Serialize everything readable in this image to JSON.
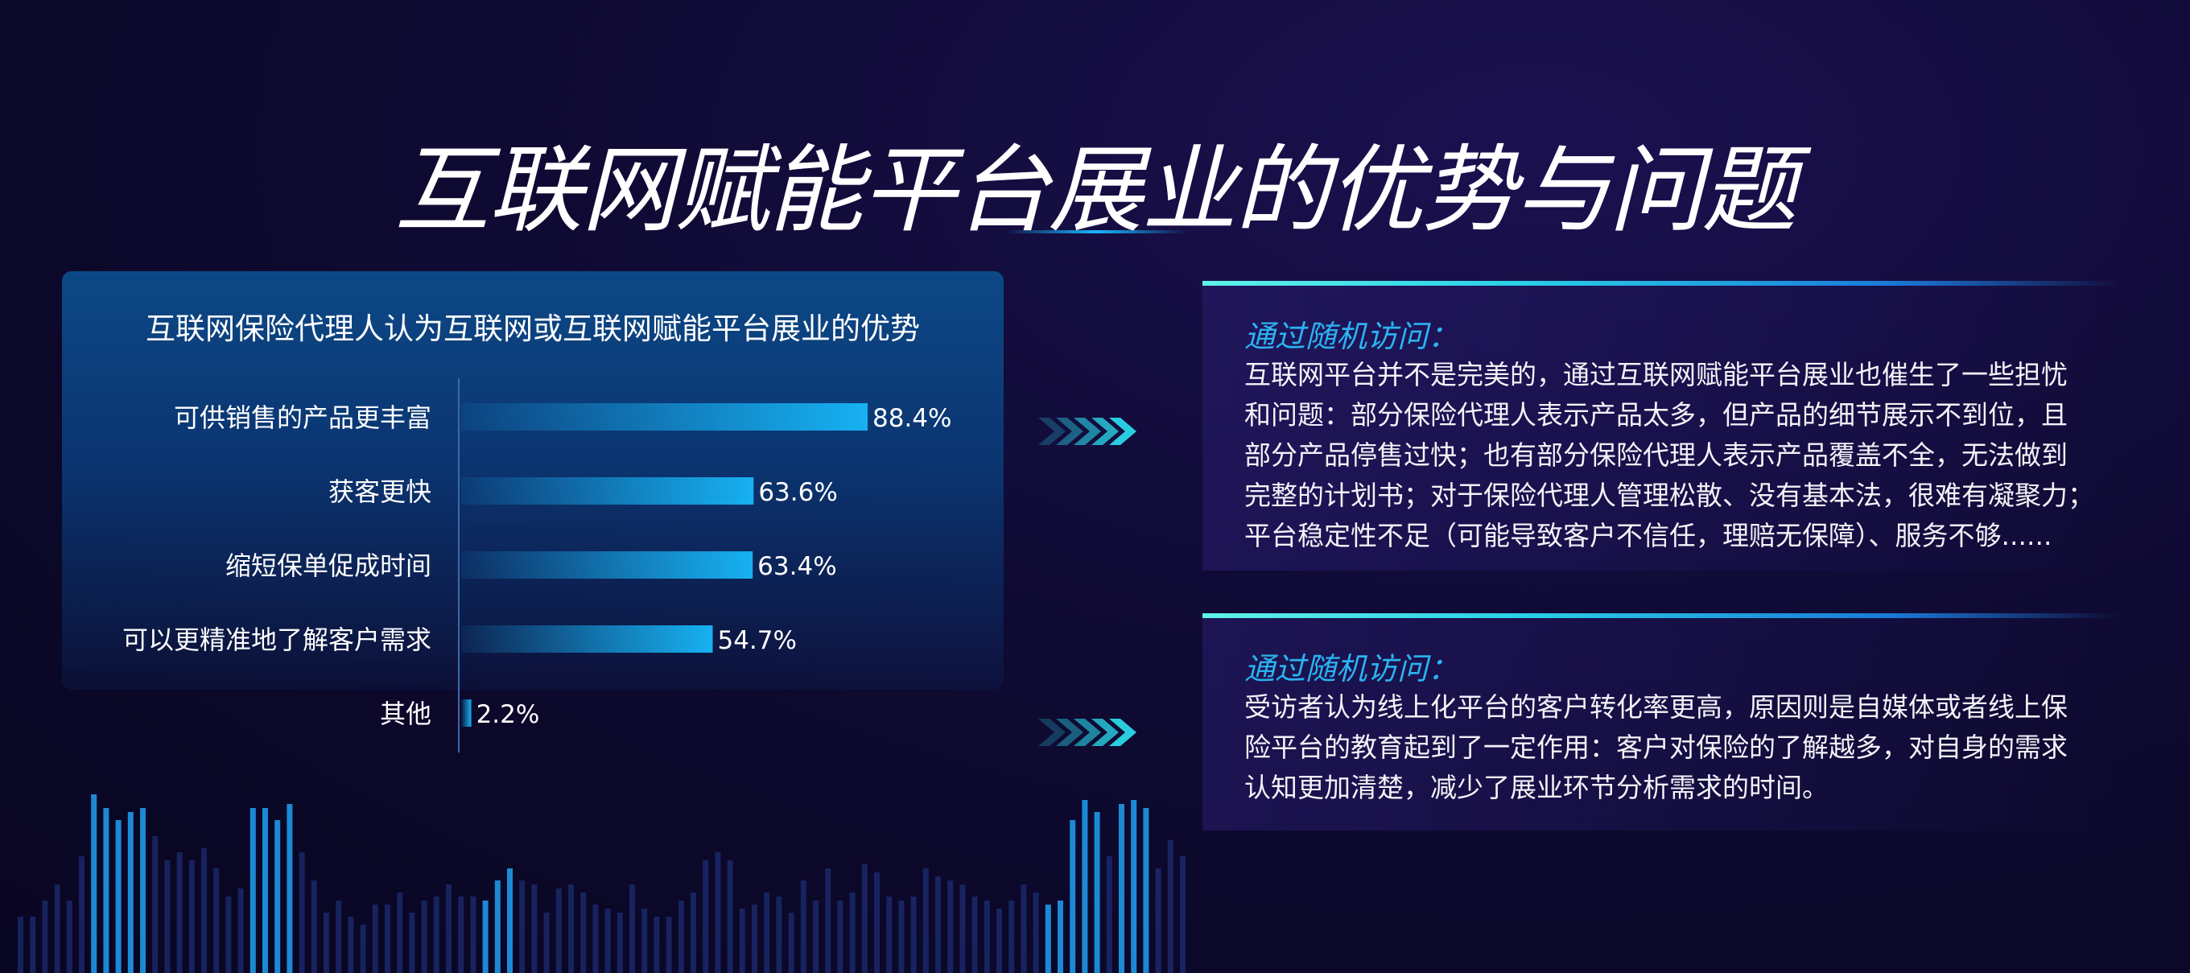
{
  "page": {
    "title": "互联网赋能平台展业的优势与问题"
  },
  "chart_data": {
    "type": "bar",
    "orientation": "horizontal",
    "title": "互联网保险代理人认为互联网或互联网赋能平台展业的优势",
    "categories": [
      "可供销售的产品更丰富",
      "获客更快",
      "缩短保单促成时间",
      "可以更精准地了解客户需求",
      "其他"
    ],
    "values": [
      88.4,
      63.6,
      63.4,
      54.7,
      2.2
    ],
    "value_labels": [
      "88.4%",
      "63.6%",
      "63.4%",
      "54.7%",
      "2.2%"
    ],
    "xlim": [
      0,
      100
    ],
    "grid": false,
    "bar_color": "#17b1f2"
  },
  "cards": [
    {
      "heading": "通过随机访问：",
      "body": "互联网平台并不是完美的，通过互联网赋能平台展业也催生了一些担忧\n和问题：部分保险代理人表示产品太多，但产品的细节展示不到位，且\n部分产品停售过快；也有部分保险代理人表示产品覆盖不全，无法做到\n完整的计划书；对于保险代理人管理松散、没有基本法，很难有凝聚力；\n平台稳定性不足（可能导致客户不信任，理赔无保障）、服务不够......"
    },
    {
      "heading": "通过随机访问：",
      "body": "受访者认为线上化平台的客户转化率更高，原因则是自媒体或者线上保\n险平台的教育起到了一定作用：客户对保险的了解越多，对自身的需求\n认知更加清楚，减少了展业环节分析需求的时间。"
    }
  ],
  "colors": {
    "background": "#0c0829",
    "accent_cyan": "#2bd3e6",
    "heading_blue": "#2bb3f0"
  }
}
